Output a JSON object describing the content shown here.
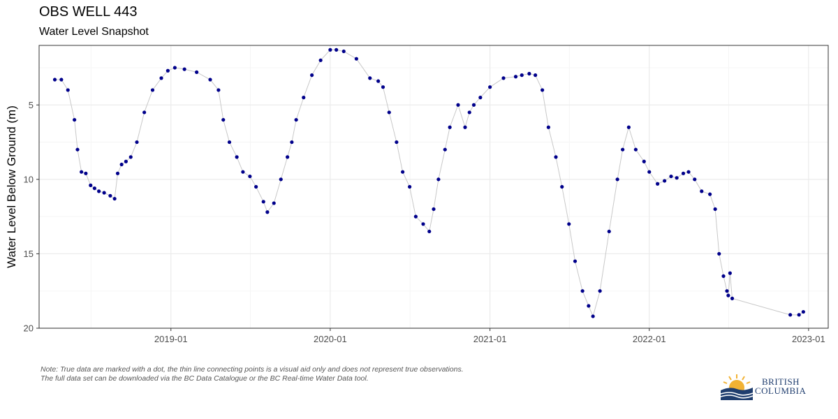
{
  "header": {
    "title": "OBS WELL 443",
    "subtitle": "Water Level Snapshot"
  },
  "note": {
    "line1": "Note: True data are marked with a dot, the thin line connecting points is a visual aid only and does not represent true observations.",
    "line2": "The full data set can be downloaded via the BC Data Catalogue or the BC Real-time Water Data tool."
  },
  "logo": {
    "line1": "BRITISH",
    "line2": "COLUMBIA"
  },
  "colors": {
    "points": "#00008B",
    "connector": "#c8c8c8",
    "grid_major": "#ebebeb",
    "grid_minor": "#f5f5f5",
    "axis_text": "#4d4d4d",
    "logo_blue": "#1f3d6e",
    "logo_gold": "#f2b233"
  },
  "chart_data": {
    "type": "scatter",
    "title": "OBS WELL 443",
    "subtitle": "Water Level Snapshot",
    "xlabel": "",
    "ylabel": "Water Level Below Ground (m)",
    "y_reversed": true,
    "ylim": [
      1.0,
      20.0
    ],
    "xlim": [
      "2018-03-05",
      "2023-02-15"
    ],
    "yticks": [
      5,
      10,
      15,
      20
    ],
    "xticks": [
      "2019-01",
      "2020-01",
      "2021-01",
      "2022-01",
      "2023-01"
    ],
    "grid": true,
    "legend": "none",
    "series": [
      {
        "marker": "dot",
        "x": [
          "2018-04-10",
          "2018-04-25",
          "2018-05-10",
          "2018-05-25",
          "2018-06-01",
          "2018-06-10",
          "2018-06-20",
          "2018-07-01",
          "2018-07-10",
          "2018-07-20",
          "2018-08-01",
          "2018-08-15",
          "2018-08-25",
          "2018-09-01",
          "2018-09-10",
          "2018-09-20",
          "2018-10-01",
          "2018-10-15",
          "2018-11-01",
          "2018-11-20",
          "2018-12-10",
          "2018-12-25",
          "2019-01-10",
          "2019-02-01",
          "2019-03-01",
          "2019-04-01",
          "2019-04-20",
          "2019-05-01",
          "2019-05-15",
          "2019-06-01",
          "2019-06-15",
          "2019-07-01",
          "2019-07-15",
          "2019-08-01",
          "2019-08-10",
          "2019-08-25",
          "2019-09-10",
          "2019-09-25",
          "2019-10-05",
          "2019-10-15",
          "2019-11-01",
          "2019-11-20",
          "2019-12-10",
          "2020-01-01",
          "2020-01-15",
          "2020-02-01",
          "2020-03-01",
          "2020-04-01",
          "2020-04-20",
          "2020-05-01",
          "2020-05-15",
          "2020-06-01",
          "2020-06-15",
          "2020-07-01",
          "2020-07-15",
          "2020-08-01",
          "2020-08-15",
          "2020-08-25",
          "2020-09-05",
          "2020-09-20",
          "2020-10-01",
          "2020-10-20",
          "2020-11-05",
          "2020-11-15",
          "2020-11-25",
          "2020-12-10",
          "2021-01-01",
          "2021-02-01",
          "2021-03-01",
          "2021-03-15",
          "2021-04-01",
          "2021-04-15",
          "2021-05-01",
          "2021-05-15",
          "2021-06-01",
          "2021-06-15",
          "2021-07-01",
          "2021-07-15",
          "2021-08-01",
          "2021-08-15",
          "2021-08-25",
          "2021-09-10",
          "2021-10-01",
          "2021-10-20",
          "2021-11-01",
          "2021-11-15",
          "2021-12-01",
          "2021-12-20",
          "2022-01-01",
          "2022-01-20",
          "2022-02-05",
          "2022-02-20",
          "2022-03-05",
          "2022-03-20",
          "2022-04-01",
          "2022-04-15",
          "2022-05-01",
          "2022-05-20",
          "2022-06-01",
          "2022-06-10",
          "2022-06-20",
          "2022-06-28",
          "2022-07-01",
          "2022-07-05",
          "2022-07-10",
          "2022-11-20",
          "2022-12-10",
          "2022-12-20"
        ],
        "y": [
          3.3,
          3.3,
          4.0,
          6.0,
          8.0,
          9.5,
          9.6,
          10.4,
          10.6,
          10.8,
          10.9,
          11.1,
          11.3,
          9.6,
          9.0,
          8.8,
          8.5,
          7.5,
          5.5,
          4.0,
          3.2,
          2.7,
          2.5,
          2.6,
          2.8,
          3.3,
          4.0,
          6.0,
          7.5,
          8.5,
          9.5,
          9.8,
          10.5,
          11.5,
          12.2,
          11.6,
          10.0,
          8.5,
          7.5,
          6.0,
          4.5,
          3.0,
          2.0,
          1.3,
          1.3,
          1.4,
          1.9,
          3.2,
          3.4,
          3.8,
          5.5,
          7.5,
          9.5,
          10.5,
          12.5,
          13.0,
          13.5,
          12.0,
          10.0,
          8.0,
          6.5,
          5.0,
          6.5,
          5.5,
          5.0,
          4.5,
          3.8,
          3.2,
          3.1,
          3.0,
          2.9,
          3.0,
          4.0,
          6.5,
          8.5,
          10.5,
          13.0,
          15.5,
          17.5,
          18.5,
          19.2,
          17.5,
          13.5,
          10.0,
          8.0,
          6.5,
          8.0,
          8.8,
          9.5,
          10.3,
          10.1,
          9.8,
          9.9,
          9.6,
          9.5,
          10.0,
          10.8,
          11.0,
          12.0,
          15.0,
          16.5,
          17.5,
          17.8,
          16.3,
          18.0,
          19.1,
          19.1,
          18.9
        ]
      }
    ]
  }
}
